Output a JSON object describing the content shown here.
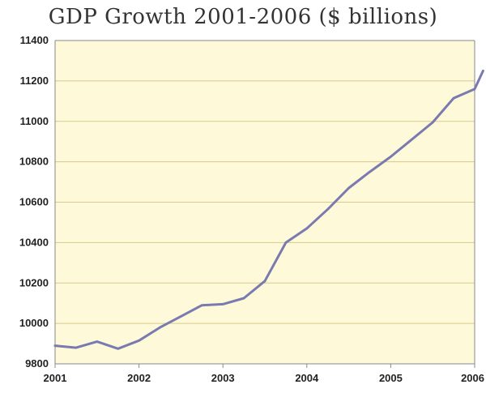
{
  "chart_data": {
    "type": "line",
    "title": "GDP Growth 2001-2006 ($ billions)",
    "xlabel": "",
    "ylabel": "",
    "ylim": [
      9800,
      11400
    ],
    "xlim": [
      2001,
      2006
    ],
    "yticks": [
      "9800",
      "10000",
      "10200",
      "10400",
      "10600",
      "10800",
      "11000",
      "11200",
      "11400"
    ],
    "xticks": [
      "2001",
      "2002",
      "2003",
      "2004",
      "2005",
      "2006"
    ],
    "grid": "horizontal",
    "legend": "none",
    "colors": {
      "line": "#7a7ab0",
      "plot_background": "#fdf9d9",
      "gridline": "#d9c98a",
      "axis": "#888888"
    },
    "series": [
      {
        "x": [
          2001.0,
          2001.25,
          2001.5,
          2001.75,
          2002.0,
          2002.25,
          2002.5,
          2002.75,
          2003.0,
          2003.25,
          2003.5,
          2003.75,
          2004.0,
          2004.25,
          2004.5,
          2004.75,
          2005.0,
          2005.25,
          2005.5,
          2005.75,
          2006.0,
          2006.1
        ],
        "values": [
          9890,
          9880,
          9910,
          9875,
          9915,
          9980,
          10035,
          10090,
          10095,
          10125,
          10210,
          10400,
          10470,
          10565,
          10670,
          10750,
          10825,
          10910,
          10995,
          11115,
          11160,
          11250
        ]
      }
    ]
  }
}
